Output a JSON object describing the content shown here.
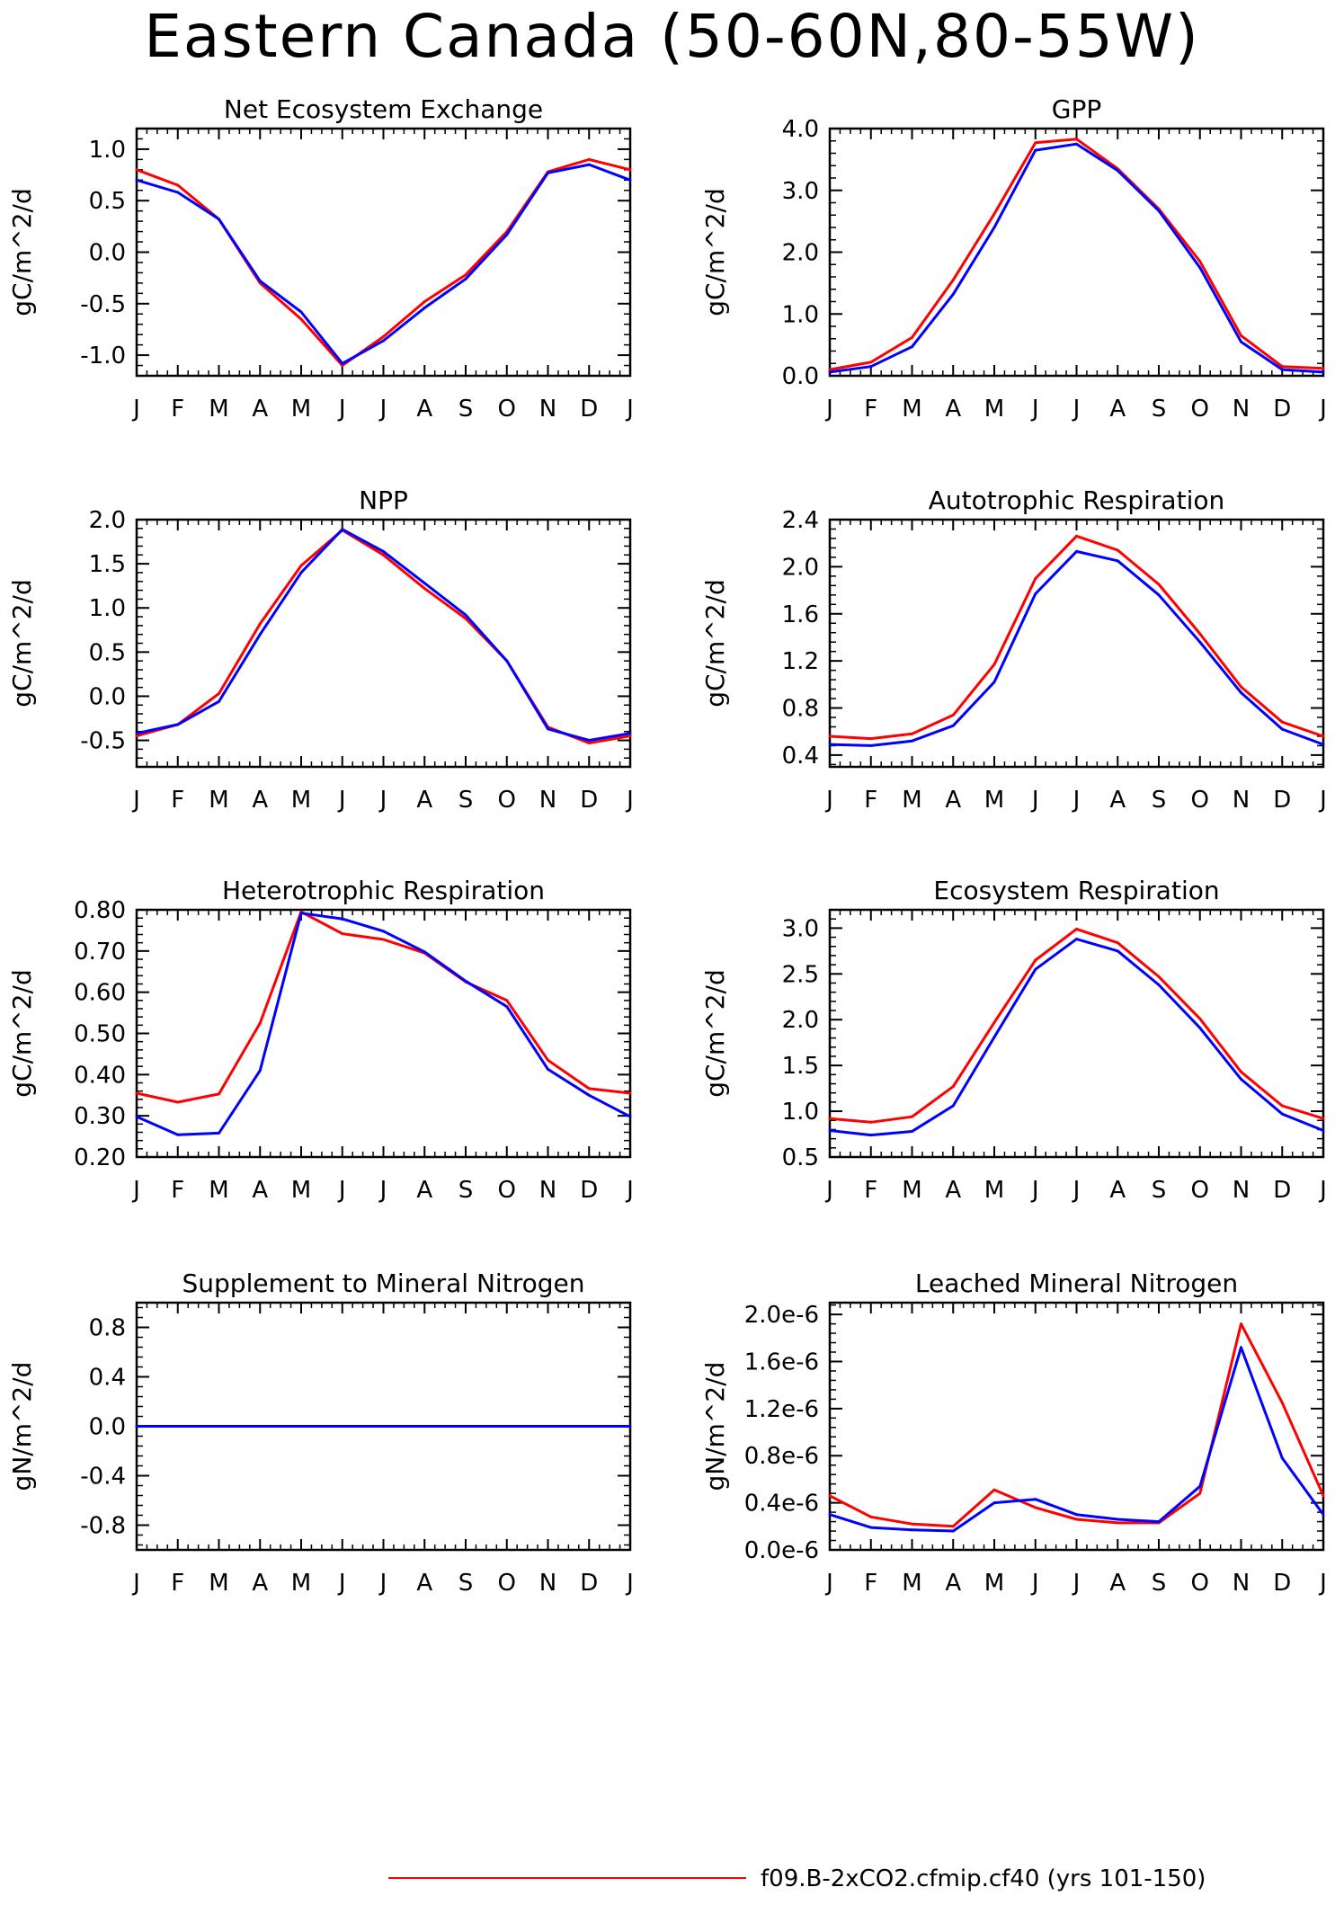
{
  "title": "Eastern Canada (50-60N,80-55W)",
  "colors": {
    "series_red": "#ff0000",
    "series_blue": "#0000ff",
    "axis": "#000000"
  },
  "legend": [
    {
      "color": "#ff0000",
      "label": "f09.B-2xCO2.cfmip.cf40 (yrs 101-150)"
    }
  ],
  "chart_data": [
    {
      "type": "line",
      "title": "Net Ecosystem Exchange",
      "ylabel": "gC/m^2/d",
      "x": [
        "J",
        "F",
        "M",
        "A",
        "M",
        "J",
        "J",
        "A",
        "S",
        "O",
        "N",
        "D",
        "J"
      ],
      "ylim": [
        -1.2,
        1.2
      ],
      "yticks": [
        -1.0,
        -0.5,
        0.0,
        0.5,
        1.0
      ],
      "ytick_labels": [
        "-1.0",
        "-0.5",
        "0.0",
        "0.5",
        "1.0"
      ],
      "series": [
        {
          "color": "#ff0000",
          "values": [
            0.8,
            0.65,
            0.32,
            -0.3,
            -0.65,
            -1.1,
            -0.82,
            -0.48,
            -0.22,
            0.2,
            0.78,
            0.9,
            0.8
          ]
        },
        {
          "color": "#0000ff",
          "values": [
            0.7,
            0.58,
            0.32,
            -0.28,
            -0.58,
            -1.08,
            -0.86,
            -0.54,
            -0.26,
            0.17,
            0.77,
            0.85,
            0.7
          ]
        }
      ]
    },
    {
      "type": "line",
      "title": "GPP",
      "ylabel": "gC/m^2/d",
      "x": [
        "J",
        "F",
        "M",
        "A",
        "M",
        "J",
        "J",
        "A",
        "S",
        "O",
        "N",
        "D",
        "J"
      ],
      "ylim": [
        0.0,
        4.0
      ],
      "yticks": [
        0.0,
        1.0,
        2.0,
        3.0,
        4.0
      ],
      "ytick_labels": [
        "0.0",
        "1.0",
        "2.0",
        "3.0",
        "4.0"
      ],
      "series": [
        {
          "color": "#ff0000",
          "values": [
            0.1,
            0.22,
            0.62,
            1.55,
            2.62,
            3.77,
            3.83,
            3.35,
            2.7,
            1.85,
            0.65,
            0.15,
            0.12
          ]
        },
        {
          "color": "#0000ff",
          "values": [
            0.06,
            0.15,
            0.47,
            1.32,
            2.4,
            3.65,
            3.75,
            3.32,
            2.67,
            1.75,
            0.55,
            0.1,
            0.06
          ]
        }
      ]
    },
    {
      "type": "line",
      "title": "NPP",
      "ylabel": "gC/m^2/d",
      "x": [
        "J",
        "F",
        "M",
        "A",
        "M",
        "J",
        "J",
        "A",
        "S",
        "O",
        "N",
        "D",
        "J"
      ],
      "ylim": [
        -0.8,
        2.0
      ],
      "yticks": [
        -0.5,
        0.0,
        0.5,
        1.0,
        1.5,
        2.0
      ],
      "ytick_labels": [
        "-0.5",
        "0.0",
        "0.5",
        "1.0",
        "1.5",
        "2.0"
      ],
      "series": [
        {
          "color": "#ff0000",
          "values": [
            -0.45,
            -0.32,
            0.03,
            0.82,
            1.48,
            1.88,
            1.6,
            1.22,
            0.88,
            0.4,
            -0.35,
            -0.53,
            -0.45
          ]
        },
        {
          "color": "#0000ff",
          "values": [
            -0.42,
            -0.32,
            -0.06,
            0.7,
            1.4,
            1.89,
            1.64,
            1.28,
            0.92,
            0.4,
            -0.37,
            -0.5,
            -0.42
          ]
        }
      ]
    },
    {
      "type": "line",
      "title": "Autotrophic Respiration",
      "ylabel": "gC/m^2/d",
      "x": [
        "J",
        "F",
        "M",
        "A",
        "M",
        "J",
        "J",
        "A",
        "S",
        "O",
        "N",
        "D",
        "J"
      ],
      "ylim": [
        0.3,
        2.4
      ],
      "yticks": [
        0.4,
        0.8,
        1.2,
        1.6,
        2.0,
        2.4
      ],
      "ytick_labels": [
        "0.4",
        "0.8",
        "1.2",
        "1.6",
        "2.0",
        "2.4"
      ],
      "series": [
        {
          "color": "#ff0000",
          "values": [
            0.56,
            0.54,
            0.58,
            0.74,
            1.17,
            1.9,
            2.26,
            2.14,
            1.85,
            1.43,
            0.98,
            0.68,
            0.56
          ]
        },
        {
          "color": "#0000ff",
          "values": [
            0.49,
            0.48,
            0.52,
            0.65,
            1.02,
            1.77,
            2.13,
            2.05,
            1.76,
            1.36,
            0.93,
            0.62,
            0.49
          ]
        }
      ]
    },
    {
      "type": "line",
      "title": "Heterotrophic Respiration",
      "ylabel": "gC/m^2/d",
      "x": [
        "J",
        "F",
        "M",
        "A",
        "M",
        "J",
        "J",
        "A",
        "S",
        "O",
        "N",
        "D",
        "J"
      ],
      "ylim": [
        0.2,
        0.8
      ],
      "yticks": [
        0.2,
        0.3,
        0.4,
        0.5,
        0.6,
        0.7,
        0.8
      ],
      "ytick_labels": [
        "0.20",
        "0.30",
        "0.40",
        "0.50",
        "0.60",
        "0.70",
        "0.80"
      ],
      "series": [
        {
          "color": "#ff0000",
          "values": [
            0.355,
            0.333,
            0.353,
            0.525,
            0.795,
            0.742,
            0.728,
            0.695,
            0.625,
            0.58,
            0.435,
            0.366,
            0.355
          ]
        },
        {
          "color": "#0000ff",
          "values": [
            0.298,
            0.254,
            0.258,
            0.41,
            0.792,
            0.778,
            0.748,
            0.698,
            0.627,
            0.565,
            0.413,
            0.35,
            0.298
          ]
        }
      ]
    },
    {
      "type": "line",
      "title": "Ecosystem Respiration",
      "ylabel": "gC/m^2/d",
      "x": [
        "J",
        "F",
        "M",
        "A",
        "M",
        "J",
        "J",
        "A",
        "S",
        "O",
        "N",
        "D",
        "J"
      ],
      "ylim": [
        0.5,
        3.2
      ],
      "yticks": [
        0.5,
        1.0,
        1.5,
        2.0,
        2.5,
        3.0
      ],
      "ytick_labels": [
        "0.5",
        "1.0",
        "1.5",
        "2.0",
        "2.5",
        "3.0"
      ],
      "series": [
        {
          "color": "#ff0000",
          "values": [
            0.92,
            0.88,
            0.94,
            1.27,
            1.97,
            2.65,
            2.99,
            2.84,
            2.47,
            2.01,
            1.43,
            1.06,
            0.92
          ]
        },
        {
          "color": "#0000ff",
          "values": [
            0.79,
            0.74,
            0.78,
            1.06,
            1.81,
            2.55,
            2.88,
            2.75,
            2.38,
            1.91,
            1.35,
            0.97,
            0.79
          ]
        }
      ]
    },
    {
      "type": "line",
      "title": "Supplement to Mineral Nitrogen",
      "ylabel": "gN/m^2/d",
      "x": [
        "J",
        "F",
        "M",
        "A",
        "M",
        "J",
        "J",
        "A",
        "S",
        "O",
        "N",
        "D",
        "J"
      ],
      "ylim": [
        -1.0,
        1.0
      ],
      "yticks": [
        -0.8,
        -0.4,
        0.0,
        0.4,
        0.8
      ],
      "ytick_labels": [
        "-0.8",
        "-0.4",
        "0.0",
        "0.4",
        "0.8"
      ],
      "series": [
        {
          "color": "#ff0000",
          "values": [
            0,
            0,
            0,
            0,
            0,
            0,
            0,
            0,
            0,
            0,
            0,
            0,
            0
          ]
        },
        {
          "color": "#0000ff",
          "values": [
            0,
            0,
            0,
            0,
            0,
            0,
            0,
            0,
            0,
            0,
            0,
            0,
            0
          ]
        }
      ]
    },
    {
      "type": "line",
      "title": "Leached Mineral Nitrogen",
      "ylabel": "gN/m^2/d",
      "x": [
        "J",
        "F",
        "M",
        "A",
        "M",
        "J",
        "J",
        "A",
        "S",
        "O",
        "N",
        "D",
        "J"
      ],
      "ylim": [
        0.0,
        2.1e-06
      ],
      "yticks": [
        0.0,
        4e-07,
        8e-07,
        1.2e-06,
        1.6e-06,
        2e-06
      ],
      "ytick_labels": [
        "0.0e-6",
        "0.4e-6",
        "0.8e-6",
        "1.2e-6",
        "1.6e-6",
        "2.0e-6"
      ],
      "series": [
        {
          "color": "#ff0000",
          "values": [
            4.6e-07,
            2.8e-07,
            2.2e-07,
            2e-07,
            5.1e-07,
            3.6e-07,
            2.6e-07,
            2.3e-07,
            2.3e-07,
            4.8e-07,
            1.92e-06,
            1.25e-06,
            4.6e-07
          ]
        },
        {
          "color": "#0000ff",
          "values": [
            3e-07,
            1.9e-07,
            1.7e-07,
            1.6e-07,
            4e-07,
            4.3e-07,
            3e-07,
            2.6e-07,
            2.4e-07,
            5.4e-07,
            1.72e-06,
            7.8e-07,
            3e-07
          ]
        }
      ]
    }
  ]
}
